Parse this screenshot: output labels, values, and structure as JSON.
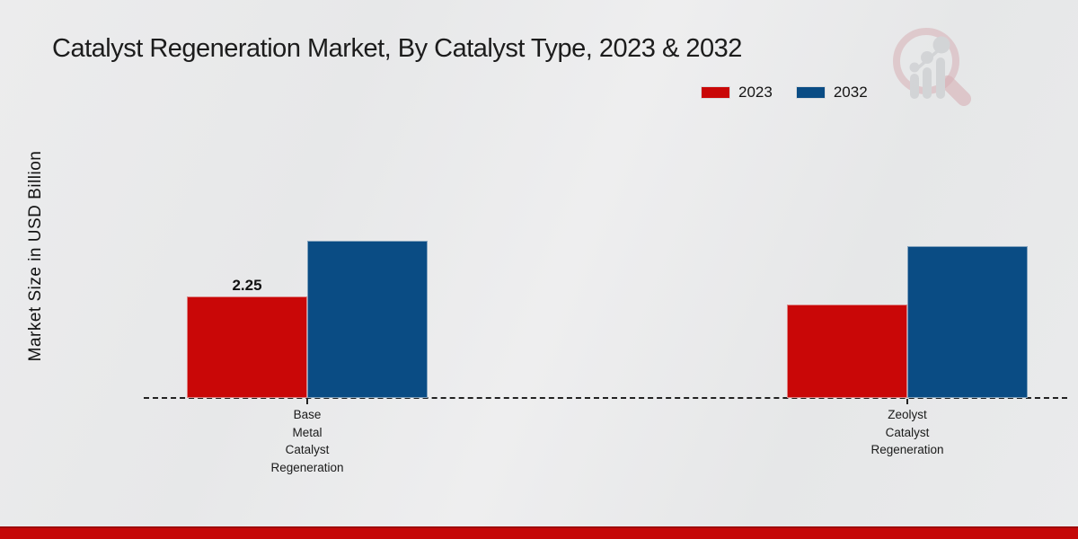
{
  "title": "Catalyst Regeneration Market, By Catalyst Type, 2023 & 2032",
  "watermark_icon": "magnifier-bar-chart-logo",
  "footer": {
    "accent_color": "#c50808"
  },
  "chart_data": {
    "type": "bar",
    "title": "Catalyst Regeneration Market, By Catalyst Type, 2023 & 2032",
    "xlabel": "",
    "ylabel": "Market Size in USD Billion",
    "categories": [
      "Base Metal Catalyst Regeneration",
      "Zeolyst Catalyst Regeneration"
    ],
    "series": [
      {
        "name": "2023",
        "color": "#c90707",
        "values": [
          2.25,
          2.07
        ]
      },
      {
        "name": "2032",
        "color": "#0a4c84",
        "values": [
          3.48,
          3.37
        ]
      }
    ],
    "bar_labels": [
      {
        "series_index": 0,
        "category_index": 0,
        "text": "2.25"
      }
    ],
    "ylim": [
      0,
      4
    ],
    "grid": false,
    "baseline_style": "dashed",
    "legend_position": "top-right"
  }
}
